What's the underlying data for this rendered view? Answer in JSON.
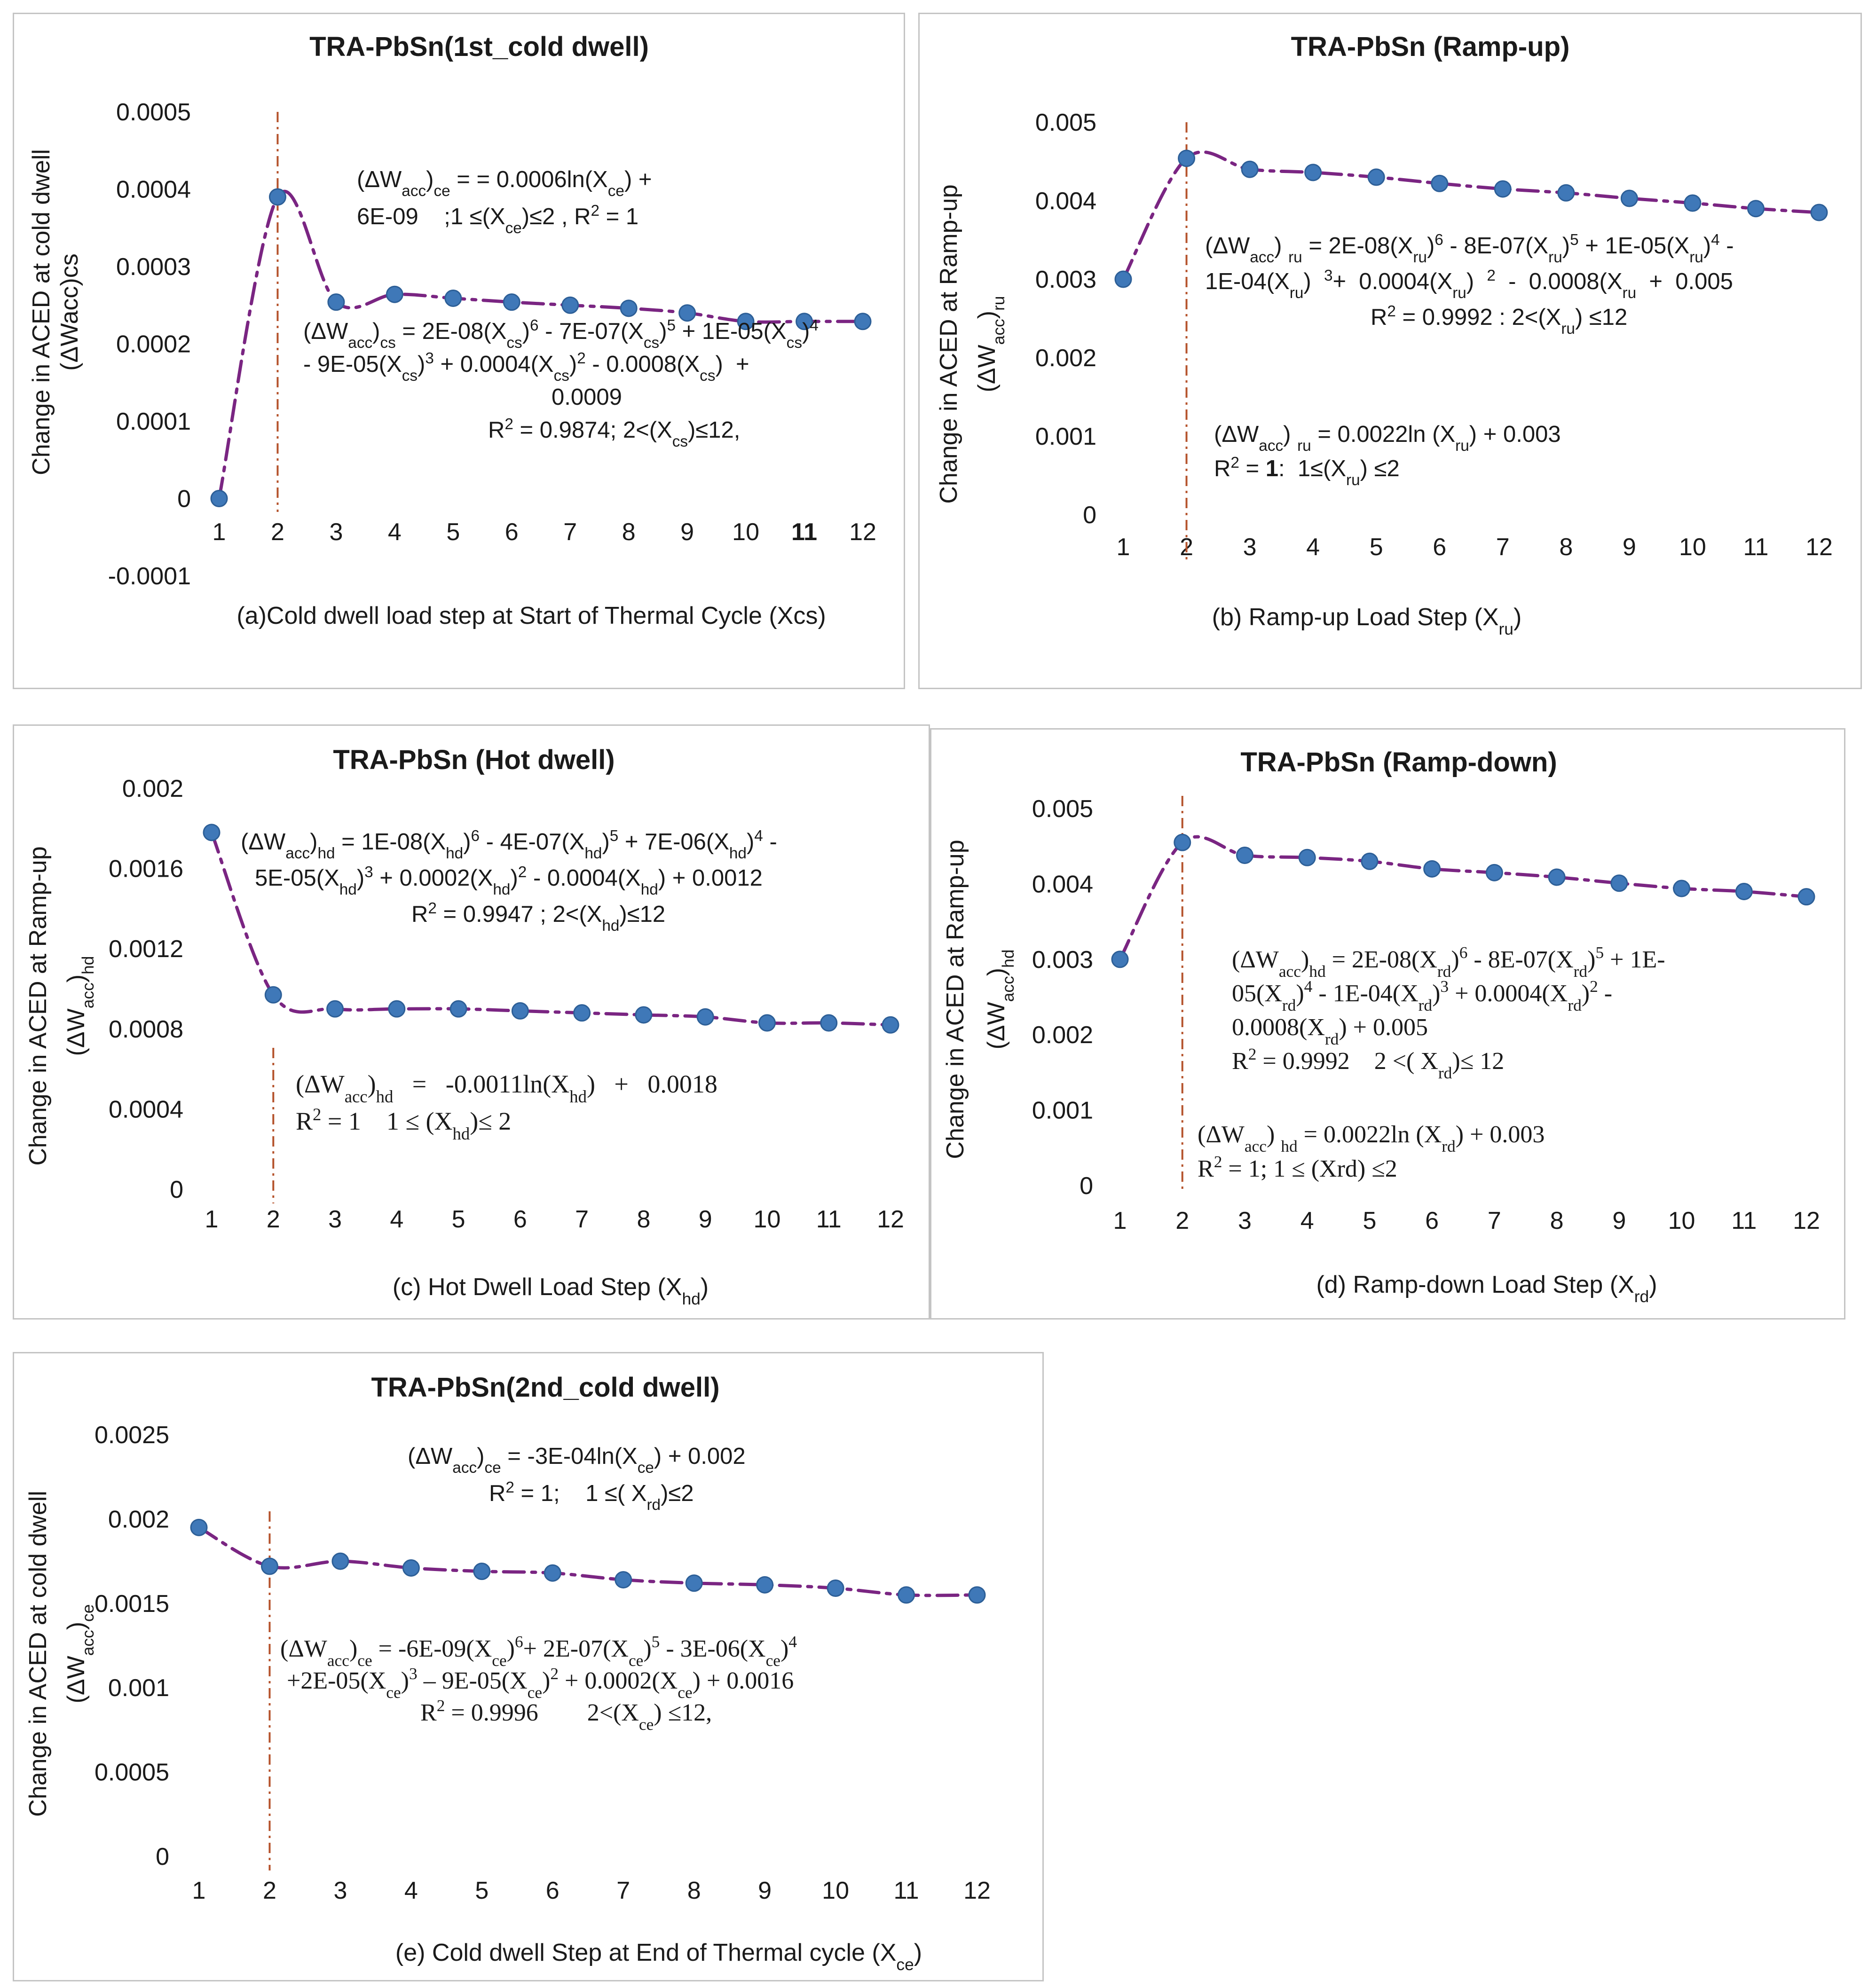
{
  "colors": {
    "trend": "#7a2582",
    "marker_fill": "#3f78b8",
    "marker_stroke": "#2d5f97",
    "divider": "#b5532c",
    "text": "#1a1a1a",
    "border": "#c4c4c4"
  },
  "chart_data": [
    {
      "type": "scatter",
      "title": "TRA-PbSn(1st_cold dwell)",
      "ylabel": [
        [
          "Change in ACED at cold dwell"
        ],
        [
          "(ΔWacc)cs"
        ]
      ],
      "xlabel": [
        "(a)Cold dwell load step at Start of Thermal Cycle (Xcs)"
      ],
      "x": [
        1,
        2,
        3,
        4,
        5,
        6,
        7,
        8,
        9,
        10,
        11,
        12
      ],
      "values": [
        0.0,
        0.00039,
        0.000254,
        0.000264,
        0.000259,
        0.000254,
        0.00025,
        0.000246,
        0.00024,
        0.000229,
        0.000229,
        0.000229
      ],
      "ylim": [
        -0.0001,
        0.0005
      ],
      "xlim": [
        1,
        12
      ],
      "yticks": [
        0.0005,
        0.0004,
        0.0003,
        0.0002,
        0.0001,
        0,
        -0.0001
      ],
      "ytick_labels": [
        "0.0005",
        "0.0004",
        "0.0003",
        "0.0002",
        "0.0001",
        "0",
        "-0.0001"
      ],
      "xtick_labels": [
        "1",
        "2",
        "3",
        "4",
        "5",
        "6",
        "7",
        "8",
        "9",
        "10",
        [
          "11",
          "b"
        ],
        "12"
      ],
      "divider_x": 2,
      "annotations": [
        {
          "lines": [
            [
              "(ΔW",
              [
                "acc",
                "sub"
              ],
              ")",
              [
                "ce",
                "sub"
              ],
              " = = 0.0006ln(X",
              [
                "ce",
                "sub"
              ],
              ") +"
            ],
            [
              "6E-09    ;1 ≤(X",
              [
                "ce",
                "sub"
              ],
              ")≤2 , R",
              [
                "2",
                "sup"
              ],
              " = 1"
            ]
          ]
        },
        {
          "lines": [
            [
              "(ΔW",
              [
                "acc",
                "sub"
              ],
              ")",
              [
                "cs",
                "sub"
              ],
              " = 2E-08(X",
              [
                "cs",
                "sub"
              ],
              ")",
              [
                "6",
                "sup"
              ],
              " - 7E-07(X",
              [
                "cs",
                "sub"
              ],
              ")",
              [
                "5",
                "sup"
              ],
              " + 1E-05(X",
              [
                "cs",
                "sub"
              ],
              ")",
              [
                "4",
                "sup"
              ]
            ],
            [
              "- 9E-05(X",
              [
                "cs",
                "sub"
              ],
              ")",
              [
                "3",
                "sup"
              ],
              " + 0.0004(X",
              [
                "cs",
                "sub"
              ],
              ")",
              [
                "2",
                "sup"
              ],
              " - 0.0008(X",
              [
                "cs",
                "sub"
              ],
              ")  +"
            ],
            [
              "0.0009"
            ],
            [
              "R",
              [
                "2",
                "sup"
              ],
              " = 0.9874; 2<(X",
              [
                "cs",
                "sub"
              ],
              ")≤12,"
            ]
          ]
        }
      ]
    },
    {
      "type": "scatter",
      "title": "TRA-PbSn (Ramp-up)",
      "ylabel": [
        [
          "Change in ACED at Ramp-up"
        ],
        [
          "(ΔW",
          [
            "acc",
            "sub"
          ],
          ")",
          [
            "ru",
            "sub"
          ]
        ]
      ],
      "xlabel": [
        "(b) Ramp-up Load Step (X",
        [
          "ru",
          "sub"
        ],
        ")"
      ],
      "x": [
        1,
        2,
        3,
        4,
        5,
        6,
        7,
        8,
        9,
        10,
        11,
        12
      ],
      "values": [
        0.003,
        0.00454,
        0.0044,
        0.00436,
        0.0043,
        0.00422,
        0.00415,
        0.0041,
        0.00403,
        0.00397,
        0.0039,
        0.00385
      ],
      "ylim": [
        0,
        0.005
      ],
      "xlim": [
        1,
        12
      ],
      "yticks": [
        0.005,
        0.004,
        0.003,
        0.002,
        0.001,
        0
      ],
      "ytick_labels": [
        "0.005",
        "0.004",
        "0.003",
        "0.002",
        "0.001",
        "0"
      ],
      "xtick_labels": [
        "1",
        "2",
        "3",
        "4",
        "5",
        "6",
        "7",
        "8",
        "9",
        "10",
        "11",
        "12"
      ],
      "divider_x": 2,
      "annotations": [
        {
          "lines": [
            [
              "(ΔW",
              [
                "acc",
                "sub"
              ],
              ") ",
              [
                "ru",
                "sub"
              ],
              " = 2E-08(X",
              [
                "ru",
                "sub"
              ],
              ")",
              [
                "6",
                "sup"
              ],
              " - 8E-07(X",
              [
                "ru",
                "sub"
              ],
              ")",
              [
                "5",
                "sup"
              ],
              " + 1E-05(X",
              [
                "ru",
                "sub"
              ],
              ")",
              [
                "4",
                "sup"
              ],
              " -"
            ],
            [
              "1E-04(X",
              [
                "ru",
                "sub"
              ],
              ")  ",
              [
                "3",
                "sup"
              ],
              "+  0.0004(X",
              [
                "ru",
                "sub"
              ],
              ")  ",
              [
                "2",
                "sup"
              ],
              "  -  0.0008(X",
              [
                "ru",
                "sub"
              ],
              "  +  0.005"
            ],
            [
              "R",
              [
                "2",
                "sup"
              ],
              " = 0.9992 : 2<(X",
              [
                "ru",
                "sub"
              ],
              ") ≤12"
            ]
          ]
        },
        {
          "lines": [
            [
              "(ΔW",
              [
                "acc",
                "sub"
              ],
              ") ",
              [
                "ru",
                "sub"
              ],
              " = 0.0022ln (X",
              [
                "ru",
                "sub"
              ],
              ") + 0.003"
            ],
            [
              "R",
              [
                "2",
                "sup"
              ],
              " = ",
              [
                "1",
                "b"
              ],
              ":  1≤(X",
              [
                "ru",
                "sub"
              ],
              ") ≤2"
            ]
          ]
        }
      ]
    },
    {
      "type": "scatter",
      "title": "TRA-PbSn (Hot dwell)",
      "ylabel": [
        [
          "Change in ACED at Ramp-up"
        ],
        [
          "(ΔW",
          [
            "acc",
            "sub"
          ],
          ")",
          [
            "hd",
            "sub"
          ]
        ]
      ],
      "xlabel": [
        "(c) Hot Dwell Load Step (X",
        [
          "hd",
          "sub"
        ],
        ")"
      ],
      "x": [
        1,
        2,
        3,
        4,
        5,
        6,
        7,
        8,
        9,
        10,
        11,
        12
      ],
      "values": [
        0.00178,
        0.00097,
        0.0009,
        0.0009,
        0.0009,
        0.00089,
        0.00088,
        0.00087,
        0.00086,
        0.00083,
        0.00083,
        0.00082
      ],
      "ylim": [
        0,
        0.002
      ],
      "xlim": [
        1,
        12
      ],
      "yticks": [
        0.002,
        0.0016,
        0.0012,
        0.0008,
        0.0004,
        0
      ],
      "ytick_labels": [
        "0.002",
        "0.0016",
        "0.0012",
        "0.0008",
        "0.0004",
        "0"
      ],
      "xtick_labels": [
        "1",
        "2",
        "3",
        "4",
        "5",
        "6",
        "7",
        "8",
        "9",
        "10",
        "11",
        "12"
      ],
      "divider_x": 2,
      "annotations": [
        {
          "lines": [
            [
              "(ΔW",
              [
                "acc",
                "sub"
              ],
              ")",
              [
                "hd",
                "sub"
              ],
              " = 1E-08(X",
              [
                "hd",
                "sub"
              ],
              ")",
              [
                "6",
                "sup"
              ],
              " - 4E-07(X",
              [
                "hd",
                "sub"
              ],
              ")",
              [
                "5",
                "sup"
              ],
              " + 7E-06(X",
              [
                "hd",
                "sub"
              ],
              ")",
              [
                "4",
                "sup"
              ],
              " -"
            ],
            [
              "5E-05(X",
              [
                "hd",
                "sub"
              ],
              ")",
              [
                "3",
                "sup"
              ],
              " + 0.0002(X",
              [
                "hd",
                "sub"
              ],
              ")",
              [
                "2",
                "sup"
              ],
              " - 0.0004(X",
              [
                "hd",
                "sub"
              ],
              ") + 0.0012"
            ],
            [
              "R",
              [
                "2",
                "sup"
              ],
              " = 0.9947 ; 2<(X",
              [
                "hd",
                "sub"
              ],
              ")≤12"
            ]
          ]
        },
        {
          "lines": [
            [
              "(ΔW",
              [
                "acc",
                "sub"
              ],
              ")",
              [
                "hd",
                "sub"
              ],
              "   =   -0.0011ln(X",
              [
                "hd",
                "sub"
              ],
              ")   +   0.0018"
            ],
            [
              "R",
              [
                "2",
                "sup"
              ],
              " = 1    1 ≤ (X",
              [
                "hd",
                "sub"
              ],
              ")≤ 2"
            ]
          ]
        }
      ]
    },
    {
      "type": "scatter",
      "title": "TRA-PbSn (Ramp-down)",
      "ylabel": [
        [
          "Change in ACED at Ramp-up"
        ],
        [
          "(ΔW",
          [
            "acc",
            "sub"
          ],
          ")",
          [
            "hd",
            "sub"
          ]
        ]
      ],
      "xlabel": [
        "(d) Ramp-down Load Step (X",
        [
          "rd",
          "sub"
        ],
        ")"
      ],
      "x": [
        1,
        2,
        3,
        4,
        5,
        6,
        7,
        8,
        9,
        10,
        11,
        12
      ],
      "values": [
        0.003,
        0.00455,
        0.00438,
        0.00435,
        0.0043,
        0.0042,
        0.00415,
        0.00409,
        0.00401,
        0.00394,
        0.0039,
        0.00383
      ],
      "ylim": [
        0,
        0.005
      ],
      "xlim": [
        1,
        12
      ],
      "yticks": [
        0.005,
        0.004,
        0.003,
        0.002,
        0.001,
        0
      ],
      "ytick_labels": [
        "0.005",
        "0.004",
        "0.003",
        "0.002",
        "0.001",
        "0"
      ],
      "xtick_labels": [
        "1",
        "2",
        "3",
        "4",
        "5",
        "6",
        "7",
        "8",
        "9",
        "10",
        "11",
        "12"
      ],
      "divider_x": 2,
      "annotations": [
        {
          "lines": [
            [
              "(ΔW",
              [
                "acc",
                "sub"
              ],
              ")",
              [
                "hd",
                "sub"
              ],
              " = 2E-08(X",
              [
                "rd",
                "sub"
              ],
              ")",
              [
                "6",
                "sup"
              ],
              " - 8E-07(X",
              [
                "rd",
                "sub"
              ],
              ")",
              [
                "5",
                "sup"
              ],
              " + 1E-"
            ],
            [
              "05(X",
              [
                "rd",
                "sub"
              ],
              ")",
              [
                "4",
                "sup"
              ],
              " - 1E-04(X",
              [
                "rd",
                "sub"
              ],
              ")",
              [
                "3",
                "sup"
              ],
              " + 0.0004(X",
              [
                "rd",
                "sub"
              ],
              ")",
              [
                "2",
                "sup"
              ],
              " -"
            ],
            [
              "0.0008(X",
              [
                "rd",
                "sub"
              ],
              ") + 0.005"
            ],
            [
              "R",
              [
                "2",
                "sup"
              ],
              " = 0.9992    2 <( X",
              [
                "rd",
                "sub"
              ],
              ")≤ 12"
            ]
          ]
        },
        {
          "lines": [
            [
              "(ΔW",
              [
                "acc",
                "sub"
              ],
              ") ",
              [
                "hd",
                "sub"
              ],
              " = 0.0022ln (X",
              [
                "rd",
                "sub"
              ],
              ") + 0.003"
            ],
            [
              "R",
              [
                "2",
                "sup"
              ],
              " = 1; 1 ≤ (Xrd) ≤2"
            ]
          ]
        }
      ]
    },
    {
      "type": "scatter",
      "title": "TRA-PbSn(2nd_cold dwell)",
      "ylabel": [
        [
          "Change in ACED at cold dwell"
        ],
        [
          "(ΔW",
          [
            "acc",
            "sub"
          ],
          ")",
          [
            "ce",
            "sub"
          ]
        ]
      ],
      "xlabel": [
        "(e) Cold dwell Step at End of Thermal cycle (X",
        [
          "ce",
          "sub"
        ],
        ")"
      ],
      "x": [
        1,
        2,
        3,
        4,
        5,
        6,
        7,
        8,
        9,
        10,
        11,
        12
      ],
      "values": [
        0.00195,
        0.00172,
        0.00175,
        0.00171,
        0.00169,
        0.00168,
        0.00164,
        0.00162,
        0.00161,
        0.00159,
        0.00155,
        0.00155
      ],
      "ylim": [
        0,
        0.0025
      ],
      "xlim": [
        1,
        12
      ],
      "yticks": [
        0.0025,
        0.002,
        0.0015,
        0.001,
        0.0005,
        0
      ],
      "ytick_labels": [
        "0.0025",
        "0.002",
        "0.0015",
        "0.001",
        "0.0005",
        "0"
      ],
      "xtick_labels": [
        "1",
        "2",
        "3",
        "4",
        "5",
        "6",
        "7",
        "8",
        "9",
        "10",
        "11",
        "12"
      ],
      "divider_x": 2,
      "annotations": [
        {
          "lines": [
            [
              "(ΔW",
              [
                "acc",
                "sub"
              ],
              ")",
              [
                "ce",
                "sub"
              ],
              " = -3E-04ln(X",
              [
                "ce",
                "sub"
              ],
              ") + 0.002"
            ],
            [
              "R",
              [
                "2",
                "sup"
              ],
              " = 1;    1 ≤( X",
              [
                "rd",
                "sub"
              ],
              ")≤2"
            ]
          ]
        },
        {
          "lines": [
            [
              "(ΔW",
              [
                "acc",
                "sub"
              ],
              ")",
              [
                "ce",
                "sub"
              ],
              " = -6E-09(X",
              [
                "ce",
                "sub"
              ],
              ")",
              [
                "6",
                "sup"
              ],
              "+ 2E-07(X",
              [
                "ce",
                "sub"
              ],
              ")",
              [
                "5",
                "sup"
              ],
              " - 3E-06(X",
              [
                "ce",
                "sub"
              ],
              ")",
              [
                "4",
                "sup"
              ]
            ],
            [
              "+2E-05(X",
              [
                "ce",
                "sub"
              ],
              ")",
              [
                "3",
                "sup"
              ],
              " – 9E-05(X",
              [
                "ce",
                "sub"
              ],
              ")",
              [
                "2",
                "sup"
              ],
              " + 0.0002(X",
              [
                "ce",
                "sub"
              ],
              ") + 0.0016"
            ],
            [
              "R",
              [
                "2",
                "sup"
              ],
              " = 0.9996        2<(X",
              [
                "ce",
                "sub"
              ],
              ") ≤12,"
            ]
          ]
        }
      ]
    }
  ]
}
